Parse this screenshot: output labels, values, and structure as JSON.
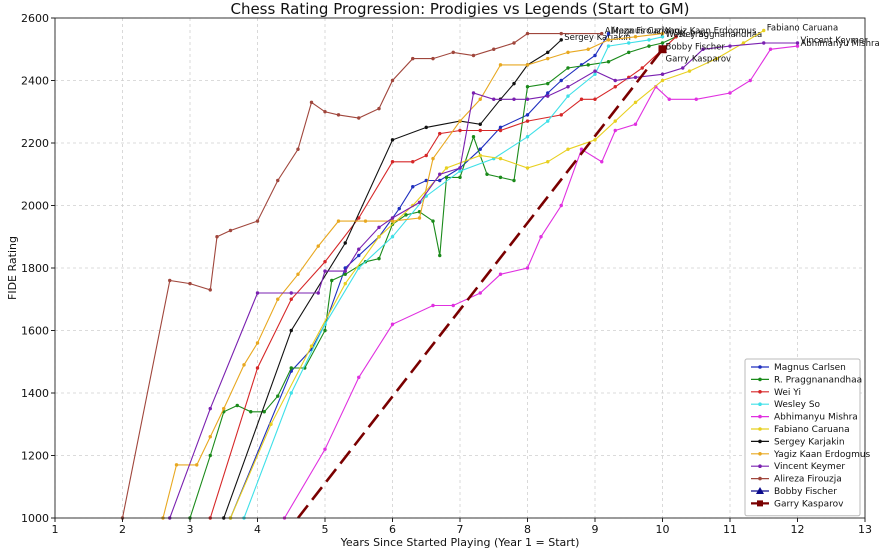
{
  "chart_data": {
    "type": "line",
    "title": "Chess Rating Progression: Prodigies vs Legends (Start to GM)",
    "xlabel": "Years Since Started Playing (Year 1 = Start)",
    "ylabel": "FIDE Rating",
    "xlim": [
      1,
      13
    ],
    "ylim": [
      1000,
      2600
    ],
    "x_ticks": [
      1,
      2,
      3,
      4,
      5,
      6,
      7,
      8,
      9,
      10,
      11,
      12,
      13
    ],
    "y_ticks": [
      1000,
      1200,
      1400,
      1600,
      1800,
      2000,
      2200,
      2400,
      2600
    ],
    "grid": true,
    "legend_position": "bottom-right",
    "series": [
      {
        "name": "Magnus Carlsen",
        "color": "#1f2fbf",
        "marker": "dot",
        "end_label": "Magnus Carlsen",
        "end_label_color": "#1f2fbf",
        "points": [
          [
            3.6,
            1000
          ],
          [
            4.5,
            1470
          ],
          [
            4.8,
            1540
          ],
          [
            5.0,
            1620
          ],
          [
            5.3,
            1800
          ],
          [
            5.5,
            1840
          ],
          [
            5.8,
            1900
          ],
          [
            6.1,
            1990
          ],
          [
            6.3,
            2060
          ],
          [
            6.5,
            2080
          ],
          [
            6.7,
            2080
          ],
          [
            7.0,
            2120
          ],
          [
            7.3,
            2180
          ],
          [
            7.6,
            2250
          ],
          [
            8.0,
            2290
          ],
          [
            8.3,
            2360
          ],
          [
            8.5,
            2400
          ],
          [
            8.8,
            2450
          ],
          [
            9.0,
            2480
          ],
          [
            9.2,
            2550
          ]
        ]
      },
      {
        "name": "R. Praggnanandhaa",
        "color": "#1a8a1a",
        "marker": "dot",
        "end_label": "R. Praggnanandhaa",
        "end_label_color": "#1a8a1a",
        "points": [
          [
            3.0,
            1000
          ],
          [
            3.3,
            1200
          ],
          [
            3.5,
            1340
          ],
          [
            3.7,
            1360
          ],
          [
            3.9,
            1340
          ],
          [
            4.1,
            1340
          ],
          [
            4.3,
            1390
          ],
          [
            4.5,
            1480
          ],
          [
            4.7,
            1480
          ],
          [
            5.0,
            1600
          ],
          [
            5.1,
            1760
          ],
          [
            5.3,
            1780
          ],
          [
            5.6,
            1820
          ],
          [
            5.8,
            1830
          ],
          [
            6.0,
            1940
          ],
          [
            6.2,
            1970
          ],
          [
            6.4,
            1980
          ],
          [
            6.6,
            1950
          ],
          [
            6.7,
            1840
          ],
          [
            6.8,
            2090
          ],
          [
            7.0,
            2090
          ],
          [
            7.2,
            2220
          ],
          [
            7.4,
            2100
          ],
          [
            7.6,
            2090
          ],
          [
            7.8,
            2080
          ],
          [
            8.0,
            2380
          ],
          [
            8.3,
            2390
          ],
          [
            8.6,
            2440
          ],
          [
            8.9,
            2450
          ],
          [
            9.2,
            2460
          ],
          [
            9.5,
            2490
          ],
          [
            9.8,
            2510
          ],
          [
            10.0,
            2520
          ],
          [
            10.2,
            2540
          ]
        ]
      },
      {
        "name": "Wei Yi",
        "color": "#d62728",
        "marker": "dot",
        "end_label": "",
        "end_label_color": "#d62728",
        "points": [
          [
            3.3,
            1000
          ],
          [
            4.0,
            1480
          ],
          [
            4.5,
            1700
          ],
          [
            5.0,
            1820
          ],
          [
            5.5,
            1960
          ],
          [
            6.0,
            2140
          ],
          [
            6.3,
            2140
          ],
          [
            6.5,
            2160
          ],
          [
            6.7,
            2230
          ],
          [
            7.0,
            2240
          ],
          [
            7.3,
            2240
          ],
          [
            7.6,
            2240
          ],
          [
            8.0,
            2270
          ],
          [
            8.5,
            2290
          ],
          [
            8.8,
            2340
          ],
          [
            9.0,
            2340
          ],
          [
            9.3,
            2380
          ],
          [
            9.5,
            2410
          ],
          [
            9.7,
            2440
          ],
          [
            10.0,
            2500
          ],
          [
            10.2,
            2540
          ]
        ]
      },
      {
        "name": "Wesley So",
        "color": "#3fe0e8",
        "marker": "dot",
        "end_label": "Wesley So",
        "end_label_color": "#2ab8c0",
        "points": [
          [
            3.8,
            1000
          ],
          [
            4.5,
            1400
          ],
          [
            5.0,
            1620
          ],
          [
            5.5,
            1800
          ],
          [
            6.0,
            1900
          ],
          [
            6.5,
            2030
          ],
          [
            7.0,
            2110
          ],
          [
            7.5,
            2150
          ],
          [
            8.0,
            2220
          ],
          [
            8.3,
            2270
          ],
          [
            8.6,
            2350
          ],
          [
            9.0,
            2420
          ],
          [
            9.2,
            2510
          ],
          [
            9.5,
            2520
          ],
          [
            9.8,
            2530
          ],
          [
            10.0,
            2540
          ]
        ]
      },
      {
        "name": "Abhimanyu Mishra",
        "color": "#e030e0",
        "marker": "dot",
        "end_label": "Abhimanyu Mishra",
        "end_label_color": "#e030e0",
        "points": [
          [
            4.4,
            1000
          ],
          [
            5.0,
            1220
          ],
          [
            5.5,
            1450
          ],
          [
            6.0,
            1620
          ],
          [
            6.6,
            1680
          ],
          [
            6.9,
            1680
          ],
          [
            7.3,
            1720
          ],
          [
            7.6,
            1780
          ],
          [
            8.0,
            1800
          ],
          [
            8.2,
            1900
          ],
          [
            8.5,
            2000
          ],
          [
            8.8,
            2180
          ],
          [
            9.1,
            2140
          ],
          [
            9.3,
            2240
          ],
          [
            9.6,
            2260
          ],
          [
            9.9,
            2380
          ],
          [
            10.1,
            2340
          ],
          [
            10.5,
            2340
          ],
          [
            11.0,
            2360
          ],
          [
            11.3,
            2400
          ],
          [
            11.6,
            2500
          ],
          [
            12.0,
            2510
          ]
        ]
      },
      {
        "name": "Fabiano Caruana",
        "color": "#e8d020",
        "marker": "dot",
        "end_label": "Fabiano Caruana",
        "end_label_color": "#d9c200",
        "points": [
          [
            3.6,
            1000
          ],
          [
            4.2,
            1300
          ],
          [
            4.8,
            1550
          ],
          [
            5.3,
            1750
          ],
          [
            5.8,
            1900
          ],
          [
            6.3,
            2000
          ],
          [
            6.8,
            2120
          ],
          [
            7.3,
            2160
          ],
          [
            7.6,
            2150
          ],
          [
            8.0,
            2120
          ],
          [
            8.3,
            2140
          ],
          [
            8.6,
            2180
          ],
          [
            9.0,
            2210
          ],
          [
            9.3,
            2270
          ],
          [
            9.6,
            2330
          ],
          [
            10.0,
            2400
          ],
          [
            10.4,
            2430
          ],
          [
            10.8,
            2470
          ],
          [
            11.2,
            2520
          ],
          [
            11.5,
            2560
          ]
        ]
      },
      {
        "name": "Sergey Karjakin",
        "color": "#111111",
        "marker": "dot",
        "end_label": "Sergey Karjakin",
        "end_label_color": "#111111",
        "points": [
          [
            3.5,
            1000
          ],
          [
            4.5,
            1600
          ],
          [
            5.3,
            1880
          ],
          [
            6.0,
            2210
          ],
          [
            6.5,
            2250
          ],
          [
            7.0,
            2270
          ],
          [
            7.3,
            2260
          ],
          [
            7.6,
            2340
          ],
          [
            7.8,
            2390
          ],
          [
            8.0,
            2450
          ],
          [
            8.3,
            2490
          ],
          [
            8.5,
            2530
          ]
        ]
      },
      {
        "name": "Yagiz Kaan Erdogmus",
        "color": "#e8a820",
        "marker": "dot",
        "end_label": "Yagiz Kaan Erdogmus",
        "end_label_color": "#e8a820",
        "points": [
          [
            2.6,
            1000
          ],
          [
            2.8,
            1170
          ],
          [
            3.1,
            1170
          ],
          [
            3.3,
            1260
          ],
          [
            3.5,
            1350
          ],
          [
            3.8,
            1490
          ],
          [
            4.0,
            1560
          ],
          [
            4.3,
            1700
          ],
          [
            4.6,
            1780
          ],
          [
            4.9,
            1870
          ],
          [
            5.2,
            1950
          ],
          [
            5.6,
            1950
          ],
          [
            6.0,
            1950
          ],
          [
            6.4,
            1960
          ],
          [
            6.6,
            2150
          ],
          [
            7.0,
            2270
          ],
          [
            7.3,
            2340
          ],
          [
            7.6,
            2450
          ],
          [
            8.0,
            2450
          ],
          [
            8.3,
            2470
          ],
          [
            8.6,
            2490
          ],
          [
            8.9,
            2500
          ],
          [
            9.2,
            2530
          ],
          [
            9.6,
            2540
          ],
          [
            10.0,
            2550
          ]
        ]
      },
      {
        "name": "Vincent Keymer",
        "color": "#7a20b0",
        "marker": "dot",
        "end_label": "Vincent Keymer",
        "end_label_color": "#7a20b0",
        "points": [
          [
            2.7,
            1000
          ],
          [
            3.3,
            1350
          ],
          [
            4.0,
            1720
          ],
          [
            4.5,
            1720
          ],
          [
            4.9,
            1720
          ],
          [
            5.0,
            1790
          ],
          [
            5.3,
            1790
          ],
          [
            5.5,
            1860
          ],
          [
            5.8,
            1930
          ],
          [
            6.0,
            1960
          ],
          [
            6.4,
            2010
          ],
          [
            6.7,
            2100
          ],
          [
            7.0,
            2120
          ],
          [
            7.2,
            2360
          ],
          [
            7.5,
            2340
          ],
          [
            7.8,
            2340
          ],
          [
            8.0,
            2340
          ],
          [
            8.3,
            2350
          ],
          [
            8.6,
            2380
          ],
          [
            9.0,
            2430
          ],
          [
            9.3,
            2400
          ],
          [
            9.6,
            2410
          ],
          [
            10.0,
            2420
          ],
          [
            10.3,
            2440
          ],
          [
            10.6,
            2500
          ],
          [
            11.0,
            2510
          ],
          [
            11.5,
            2520
          ],
          [
            12.0,
            2520
          ]
        ]
      },
      {
        "name": "Alireza Firouzja",
        "color": "#a0463c",
        "marker": "dot",
        "end_label": "Alireza Firouzja",
        "end_label_color": "#a0463c",
        "points": [
          [
            2.0,
            1000
          ],
          [
            2.7,
            1760
          ],
          [
            3.0,
            1750
          ],
          [
            3.3,
            1730
          ],
          [
            3.4,
            1900
          ],
          [
            3.6,
            1920
          ],
          [
            4.0,
            1950
          ],
          [
            4.3,
            2080
          ],
          [
            4.6,
            2180
          ],
          [
            4.8,
            2330
          ],
          [
            5.0,
            2300
          ],
          [
            5.2,
            2290
          ],
          [
            5.5,
            2280
          ],
          [
            5.8,
            2310
          ],
          [
            6.0,
            2400
          ],
          [
            6.3,
            2470
          ],
          [
            6.6,
            2470
          ],
          [
            6.9,
            2490
          ],
          [
            7.2,
            2480
          ],
          [
            7.5,
            2500
          ],
          [
            7.8,
            2520
          ],
          [
            8.0,
            2550
          ],
          [
            8.5,
            2550
          ],
          [
            9.1,
            2550
          ]
        ]
      },
      {
        "name": "Bobby Fischer",
        "color": "#0a0a8c",
        "marker": "triangle",
        "end_label": "Bobby Fischer",
        "end_label_color": "#0a0a8c",
        "points": [
          [
            10.0,
            2500
          ]
        ]
      },
      {
        "name": "Garry Kasparov",
        "color": "#7a0000",
        "marker": "square",
        "dashed": true,
        "end_label": "Garry Kasparov",
        "end_label_color": "#7a0000",
        "points": [
          [
            4.6,
            1000
          ],
          [
            10.0,
            2500
          ]
        ]
      }
    ]
  }
}
